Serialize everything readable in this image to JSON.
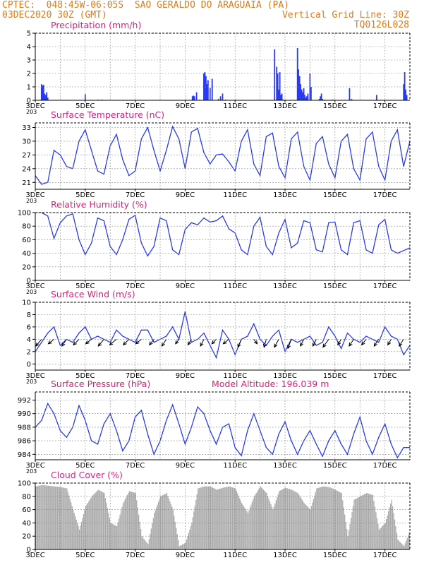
{
  "header": {
    "line1": "CPTEC:  048:45W-06:05S  SAO GERALDO DO ARAGUAIA (PA)",
    "line2": "03DEC2020 30Z (GMT)",
    "grid_note": "Vertical Grid Line: 30Z",
    "code": "TQ0126L028"
  },
  "colors": {
    "header": "#e07a1a",
    "panel_title": "#d6237a",
    "series": "#2a3af0",
    "cloud": "#a9a9a9",
    "wind_arrow": "#000000",
    "axis": "#000000",
    "grid": "#888888"
  },
  "x_axis": {
    "start_hour": 0,
    "end_hour": 360,
    "tick_labels": [
      "3DEC",
      "5DEC",
      "7DEC",
      "9DEC",
      "11DEC",
      "13DEC",
      "15DEC",
      "17DEC"
    ],
    "tick_hours": [
      0,
      48,
      96,
      144,
      192,
      240,
      288,
      336
    ],
    "grid_step_hours": 24,
    "overlap_note": "203"
  },
  "chart_data": [
    {
      "type": "bar",
      "title": "Precipitation (mm/h)",
      "ylim": [
        0,
        5
      ],
      "yticks": [
        0,
        1,
        2,
        3,
        4,
        5
      ],
      "x_hours": [
        6,
        7,
        8,
        9,
        10,
        11,
        12,
        48,
        60,
        64,
        151,
        152,
        153,
        155,
        158,
        162,
        163,
        164,
        165,
        166,
        168,
        170,
        176,
        178,
        180,
        183,
        230,
        232,
        233,
        234,
        235,
        236,
        237,
        238,
        252,
        253,
        254,
        255,
        256,
        257,
        258,
        259,
        260,
        261,
        262,
        264,
        265,
        273,
        274,
        275,
        276,
        278,
        285,
        286,
        302,
        304,
        328,
        354,
        355,
        356,
        357
      ],
      "values": [
        1.2,
        1.1,
        1.15,
        0.5,
        0.4,
        0.6,
        0.2,
        0.45,
        0.05,
        0.05,
        0.3,
        0.35,
        0.3,
        0.6,
        0.05,
        2.0,
        2.1,
        1.8,
        1.2,
        1.5,
        0.9,
        1.6,
        0.1,
        0.3,
        0.5,
        0.05,
        3.8,
        2.5,
        2.0,
        0.8,
        2.1,
        0.4,
        0.5,
        0.05,
        3.9,
        2.3,
        1.8,
        1.2,
        0.8,
        0.6,
        0.9,
        0.4,
        0.2,
        0.3,
        0.5,
        2.0,
        1.0,
        0.1,
        0.3,
        0.5,
        0.1,
        0.05,
        0.05,
        0.05,
        0.9,
        0.1,
        0.4,
        1.2,
        2.1,
        0.8,
        0.4
      ]
    },
    {
      "type": "line",
      "title": "Surface Temperature (nC)",
      "ylim": [
        19.5,
        34
      ],
      "yticks": [
        21,
        24,
        27,
        30,
        33
      ],
      "x_hours": [
        0,
        6,
        12,
        18,
        24,
        30,
        36,
        42,
        48,
        54,
        60,
        66,
        72,
        78,
        84,
        90,
        96,
        102,
        108,
        114,
        120,
        126,
        132,
        138,
        144,
        150,
        156,
        162,
        168,
        174,
        180,
        186,
        192,
        198,
        204,
        210,
        216,
        222,
        228,
        234,
        240,
        246,
        252,
        258,
        264,
        270,
        276,
        282,
        288,
        294,
        300,
        306,
        312,
        318,
        324,
        330,
        336,
        342,
        348,
        354,
        360
      ],
      "values": [
        22.5,
        20.6,
        21.0,
        28.0,
        27.0,
        24.5,
        24.0,
        30.0,
        32.5,
        28.0,
        23.5,
        22.8,
        29.0,
        31.5,
        26.0,
        22.5,
        23.5,
        30.5,
        33.0,
        28.0,
        23.5,
        28.0,
        33.2,
        30.5,
        24.0,
        32.0,
        32.8,
        27.5,
        25.0,
        27.0,
        27.2,
        25.5,
        23.5,
        30.0,
        32.5,
        25.0,
        22.5,
        31.0,
        31.8,
        24.5,
        22.0,
        30.5,
        32.0,
        24.5,
        21.5,
        29.5,
        31.0,
        25.0,
        22.0,
        30.0,
        31.5,
        24.0,
        21.5,
        30.5,
        32.0,
        24.5,
        21.5,
        30.0,
        32.5,
        24.5,
        30.0
      ]
    },
    {
      "type": "line",
      "title": "Relative Humidity (%)",
      "ylim": [
        0,
        100
      ],
      "yticks": [
        0,
        20,
        40,
        60,
        80,
        100
      ],
      "x_hours": [
        0,
        6,
        12,
        18,
        24,
        30,
        36,
        42,
        48,
        54,
        60,
        66,
        72,
        78,
        84,
        90,
        96,
        102,
        108,
        114,
        120,
        126,
        132,
        138,
        144,
        150,
        156,
        162,
        168,
        174,
        180,
        186,
        192,
        198,
        204,
        210,
        216,
        222,
        228,
        234,
        240,
        246,
        252,
        258,
        264,
        270,
        276,
        282,
        288,
        294,
        300,
        306,
        312,
        318,
        324,
        330,
        336,
        342,
        348,
        354,
        360
      ],
      "values": [
        100,
        100,
        95,
        62,
        85,
        95,
        98,
        60,
        38,
        55,
        92,
        88,
        50,
        38,
        60,
        90,
        96,
        55,
        36,
        50,
        92,
        88,
        45,
        38,
        75,
        85,
        82,
        92,
        86,
        88,
        95,
        76,
        70,
        45,
        38,
        80,
        93,
        50,
        38,
        70,
        90,
        48,
        55,
        88,
        85,
        45,
        42,
        85,
        86,
        45,
        38,
        85,
        88,
        45,
        40,
        82,
        90,
        45,
        40,
        44,
        48
      ]
    },
    {
      "type": "line",
      "title": "Surface Wind (m/s)",
      "ylim": [
        -1,
        10
      ],
      "yticks": [
        0,
        2,
        4,
        6,
        8,
        10
      ],
      "x_hours": [
        0,
        6,
        12,
        18,
        24,
        30,
        36,
        42,
        48,
        54,
        60,
        66,
        72,
        78,
        84,
        90,
        96,
        102,
        108,
        114,
        120,
        126,
        132,
        138,
        144,
        150,
        156,
        162,
        168,
        174,
        180,
        186,
        192,
        198,
        204,
        210,
        216,
        222,
        228,
        234,
        240,
        246,
        252,
        258,
        264,
        270,
        276,
        282,
        288,
        294,
        300,
        306,
        312,
        318,
        324,
        330,
        336,
        342,
        348,
        354,
        360
      ],
      "values": [
        2.0,
        3.5,
        5.0,
        6.0,
        3.0,
        4.0,
        3.5,
        5.0,
        6.0,
        4.0,
        4.5,
        4.0,
        3.5,
        5.5,
        4.5,
        4.0,
        3.5,
        5.5,
        5.5,
        3.5,
        4.0,
        4.5,
        6.0,
        4.0,
        8.5,
        3.5,
        4.0,
        5.0,
        3.0,
        1.0,
        5.5,
        4.0,
        1.5,
        4.0,
        4.5,
        6.5,
        4.0,
        3.0,
        4.5,
        5.5,
        2.0,
        4.0,
        3.5,
        4.0,
        4.5,
        3.0,
        3.5,
        6.0,
        4.5,
        2.5,
        5.0,
        4.0,
        3.5,
        4.5,
        4.0,
        3.5,
        6.0,
        4.5,
        4.0,
        1.5,
        3.0
      ],
      "arrows": {
        "x_hours": [
          6,
          18,
          30,
          42,
          54,
          66,
          78,
          90,
          102,
          114,
          126,
          138,
          150,
          162,
          174,
          186,
          198,
          210,
          222,
          234,
          246,
          258,
          270,
          282,
          294,
          306,
          318,
          330,
          342,
          354
        ],
        "u": [
          -2.5,
          -2.5,
          -2.0,
          -2.5,
          -2.5,
          -2.5,
          -3.0,
          -2.5,
          -2.5,
          -2.0,
          -2.0,
          -1.5,
          -1.5,
          -1.5,
          -2.0,
          -2.5,
          -1.5,
          1.5,
          -1.0,
          -2.0,
          -1.5,
          -1.5,
          -1.5,
          -2.5,
          -1.5,
          -2.0,
          -2.0,
          -2.0,
          -1.5,
          -2.0
        ],
        "v": [
          -3.0,
          -2.0,
          -3.0,
          -2.5,
          -2.0,
          -3.0,
          -2.5,
          -2.5,
          -2.0,
          -2.5,
          -3.0,
          -2.0,
          -2.5,
          -3.0,
          -2.0,
          -2.0,
          -3.5,
          -2.0,
          -3.5,
          -3.5,
          -4.0,
          -3.0,
          -3.0,
          -3.5,
          -2.5,
          -3.0,
          -2.5,
          -3.0,
          -2.5,
          -3.0
        ]
      }
    },
    {
      "type": "line",
      "title": "Surface Pressure (hPa)",
      "subtitle": "Model Altitude: 196.039 m",
      "ylim": [
        983.2,
        993.2
      ],
      "yticks": [
        984,
        986,
        988,
        990,
        992
      ],
      "x_hours": [
        0,
        6,
        12,
        18,
        24,
        30,
        36,
        42,
        48,
        54,
        60,
        66,
        72,
        78,
        84,
        90,
        96,
        102,
        108,
        114,
        120,
        126,
        132,
        138,
        144,
        150,
        156,
        162,
        168,
        174,
        180,
        186,
        192,
        198,
        204,
        210,
        216,
        222,
        228,
        234,
        240,
        246,
        252,
        258,
        264,
        270,
        276,
        282,
        288,
        294,
        300,
        306,
        312,
        318,
        324,
        330,
        336,
        342,
        348,
        354,
        360
      ],
      "values": [
        988.0,
        989.0,
        991.5,
        990.0,
        987.5,
        986.5,
        988.0,
        991.2,
        989.0,
        986.0,
        985.5,
        988.5,
        990.0,
        987.5,
        984.5,
        986.0,
        989.5,
        990.5,
        987.0,
        984.0,
        986.0,
        989.0,
        991.3,
        988.5,
        985.5,
        988.0,
        991.0,
        990.0,
        987.5,
        985.5,
        988.0,
        988.5,
        985.0,
        983.8,
        987.5,
        990.0,
        987.5,
        985.0,
        984.0,
        987.0,
        988.8,
        986.0,
        984.0,
        986.0,
        987.5,
        985.5,
        983.7,
        986.0,
        987.5,
        985.5,
        984.0,
        987.0,
        989.5,
        986.0,
        984.0,
        986.5,
        988.5,
        985.5,
        983.5,
        985.0,
        985.0
      ]
    },
    {
      "type": "area",
      "title": "Cloud Cover (%)",
      "ylim": [
        0,
        100
      ],
      "yticks": [
        0,
        20,
        40,
        60,
        80,
        100
      ],
      "x_hours": [
        0,
        6,
        12,
        18,
        24,
        30,
        36,
        42,
        48,
        54,
        60,
        66,
        72,
        78,
        84,
        90,
        96,
        102,
        108,
        114,
        120,
        126,
        132,
        138,
        144,
        150,
        156,
        162,
        168,
        174,
        180,
        186,
        192,
        198,
        204,
        210,
        216,
        222,
        228,
        234,
        240,
        246,
        252,
        258,
        264,
        270,
        276,
        282,
        288,
        294,
        300,
        306,
        312,
        318,
        324,
        330,
        336,
        342,
        348,
        354,
        360
      ],
      "values": [
        95,
        97,
        96,
        95,
        94,
        92,
        60,
        30,
        65,
        80,
        90,
        85,
        40,
        35,
        70,
        88,
        85,
        20,
        8,
        55,
        80,
        85,
        60,
        5,
        10,
        40,
        92,
        95,
        95,
        90,
        93,
        95,
        92,
        70,
        55,
        80,
        95,
        85,
        60,
        88,
        93,
        90,
        85,
        70,
        60,
        92,
        95,
        94,
        90,
        85,
        20,
        75,
        80,
        85,
        82,
        30,
        40,
        75,
        15,
        5,
        30
      ]
    }
  ]
}
